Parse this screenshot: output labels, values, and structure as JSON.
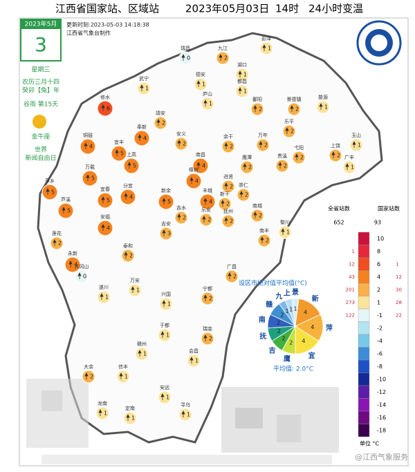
{
  "header": {
    "title": "江西省国家站、区域站",
    "date": "2023年05月03日",
    "hour": "14时",
    "element": "24小时变温",
    "update": "更新时刻:2023-05-03 14:18:38",
    "producer": "江西省气象台制作"
  },
  "calendar": {
    "month": "2023年5月",
    "day": "3",
    "weekday": "星期三",
    "lunar": "农历三月十四",
    "year": "癸卯【兔】年",
    "term": "谷雨 第15天",
    "zodiac": "金牛座",
    "festival": [
      "世界",
      "新闻自由日"
    ]
  },
  "legend": {
    "all_title": "全省站数",
    "national_title": "国家站数",
    "all_total": "652",
    "national_total": "93",
    "unit": "单位 °C",
    "rows": [
      {
        "value": 10,
        "color": "#c8143c",
        "all": null,
        "national": null
      },
      {
        "value": 8,
        "color": "#e6283c",
        "all": "1",
        "national": null
      },
      {
        "value": 6,
        "color": "#f04e22",
        "all": "12",
        "national": "1"
      },
      {
        "value": 4,
        "color": "#f5821f",
        "all": "43",
        "national": "12"
      },
      {
        "value": 2,
        "color": "#f8b04a",
        "all": "201",
        "national": "30"
      },
      {
        "value": 1,
        "color": "#fbe39a",
        "all": "273",
        "national": "28"
      },
      {
        "value": -1,
        "color": "#e6f5f5",
        "all": "122",
        "national": "22"
      },
      {
        "value": -2,
        "color": "#b4e4f0",
        "all": null,
        "national": null
      },
      {
        "value": -4,
        "color": "#78c8e8",
        "all": null,
        "national": null
      },
      {
        "value": -6,
        "color": "#3c8cd8",
        "all": null,
        "national": null
      },
      {
        "value": -8,
        "color": "#1e50c8",
        "all": null,
        "national": null
      },
      {
        "value": -10,
        "color": "#142896",
        "all": null,
        "national": null
      },
      {
        "value": -12,
        "color": "#5a1eaa",
        "all": null,
        "national": null
      },
      {
        "value": -14,
        "color": "#8c14b4",
        "all": null,
        "national": null
      },
      {
        "value": -16,
        "color": "#6e0a82",
        "all": null,
        "national": null
      },
      {
        "value": -18,
        "color": "#3c0050",
        "all": null,
        "national": null
      }
    ]
  },
  "pie": {
    "title": "设区市绝对值平均值(°C)",
    "average": "平均值: 2.0°C",
    "slices": [
      {
        "label": "景",
        "value": 1,
        "color": "#d8eef4"
      },
      {
        "label": "新",
        "value": 4,
        "color": "#f39a2c"
      },
      {
        "label": "萍",
        "value": 4,
        "color": "#f7b23c"
      },
      {
        "label": "宜",
        "value": 4,
        "color": "#f8e040"
      },
      {
        "label": "鹰",
        "value": 2,
        "color": "#c8e040"
      },
      {
        "label": "吉",
        "value": 2,
        "color": "#40b040"
      },
      {
        "label": "抚",
        "value": 2,
        "color": "#20a080"
      },
      {
        "label": "南",
        "value": 2,
        "color": "#3060c0"
      },
      {
        "label": "赣",
        "value": 2,
        "color": "#4090d0"
      },
      {
        "label": "九",
        "value": 1,
        "color": "#80b8e8"
      },
      {
        "label": "上",
        "value": 1,
        "color": "#b8dcf4"
      }
    ]
  },
  "stations": [
    {
      "name": "瑞昌",
      "value": 0
    },
    {
      "name": "九江",
      "value": 2
    },
    {
      "name": "湖口",
      "value": 1
    },
    {
      "name": "彭泽",
      "value": 1
    },
    {
      "name": "德安",
      "value": 1
    },
    {
      "name": "都昌",
      "value": 1
    },
    {
      "name": "庐山",
      "value": 1
    },
    {
      "name": "武宁",
      "value": 1
    },
    {
      "name": "修水",
      "value": 6
    },
    {
      "name": "铜鼓",
      "value": 4
    },
    {
      "name": "宜丰",
      "value": 5
    },
    {
      "name": "靖安",
      "value": 2
    },
    {
      "name": "奉新",
      "value": 4
    },
    {
      "name": "安义",
      "value": 2
    },
    {
      "name": "南昌",
      "value": 4
    },
    {
      "name": "景德镇",
      "value": 2
    },
    {
      "name": "婺源",
      "value": 1
    },
    {
      "name": "乐平",
      "value": 2
    },
    {
      "name": "鄱阳",
      "value": 2
    },
    {
      "name": "余干",
      "value": 2
    },
    {
      "name": "万年",
      "value": 2
    },
    {
      "name": "上饶",
      "value": 2
    },
    {
      "name": "玉山",
      "value": 1
    },
    {
      "name": "广丰",
      "value": 1
    },
    {
      "name": "弋阳",
      "value": 2
    },
    {
      "name": "鹰潭",
      "value": 2
    },
    {
      "name": "贵溪",
      "value": 2
    },
    {
      "name": "进贤",
      "value": 2
    },
    {
      "name": "万载",
      "value": 5
    },
    {
      "name": "上高",
      "value": 5
    },
    {
      "name": "宜春",
      "value": 5
    },
    {
      "name": "萍乡",
      "value": 5
    },
    {
      "name": "芦溪",
      "value": 5
    },
    {
      "name": "分宜",
      "value": 4
    },
    {
      "name": "新余",
      "value": 5
    },
    {
      "name": "樟树",
      "value": 4
    },
    {
      "name": "丰城",
      "value": 4
    },
    {
      "name": "新干",
      "value": 2
    },
    {
      "name": "崇仁",
      "value": 2
    },
    {
      "name": "抚州",
      "value": 2
    },
    {
      "name": "南城",
      "value": 2
    },
    {
      "name": "黎川",
      "value": 1
    },
    {
      "name": "安福",
      "value": 4
    },
    {
      "name": "莲花",
      "value": 2
    },
    {
      "name": "永新",
      "value": 4
    },
    {
      "name": "吉安",
      "value": 3
    },
    {
      "name": "吉水",
      "value": 2
    },
    {
      "name": "乐安",
      "value": 2
    },
    {
      "name": "南丰",
      "value": 2
    },
    {
      "name": "广昌",
      "value": 2
    },
    {
      "name": "泰和",
      "value": 2
    },
    {
      "name": "井冈山",
      "value": 0
    },
    {
      "name": "遂川",
      "value": 1
    },
    {
      "name": "万安",
      "value": 1
    },
    {
      "name": "兴国",
      "value": 1
    },
    {
      "name": "宁都",
      "value": 2
    },
    {
      "name": "于都",
      "value": 1
    },
    {
      "name": "瑞金",
      "value": 2
    },
    {
      "name": "会昌",
      "value": 1
    },
    {
      "name": "大余",
      "value": 2
    },
    {
      "name": "信丰",
      "value": 1
    },
    {
      "name": "赣州",
      "value": 1
    },
    {
      "name": "安远",
      "value": 1
    },
    {
      "name": "龙南",
      "value": 1
    },
    {
      "name": "定南",
      "value": 1
    },
    {
      "name": "寻乌",
      "value": 1
    }
  ],
  "watermark": "@江西气象服务"
}
